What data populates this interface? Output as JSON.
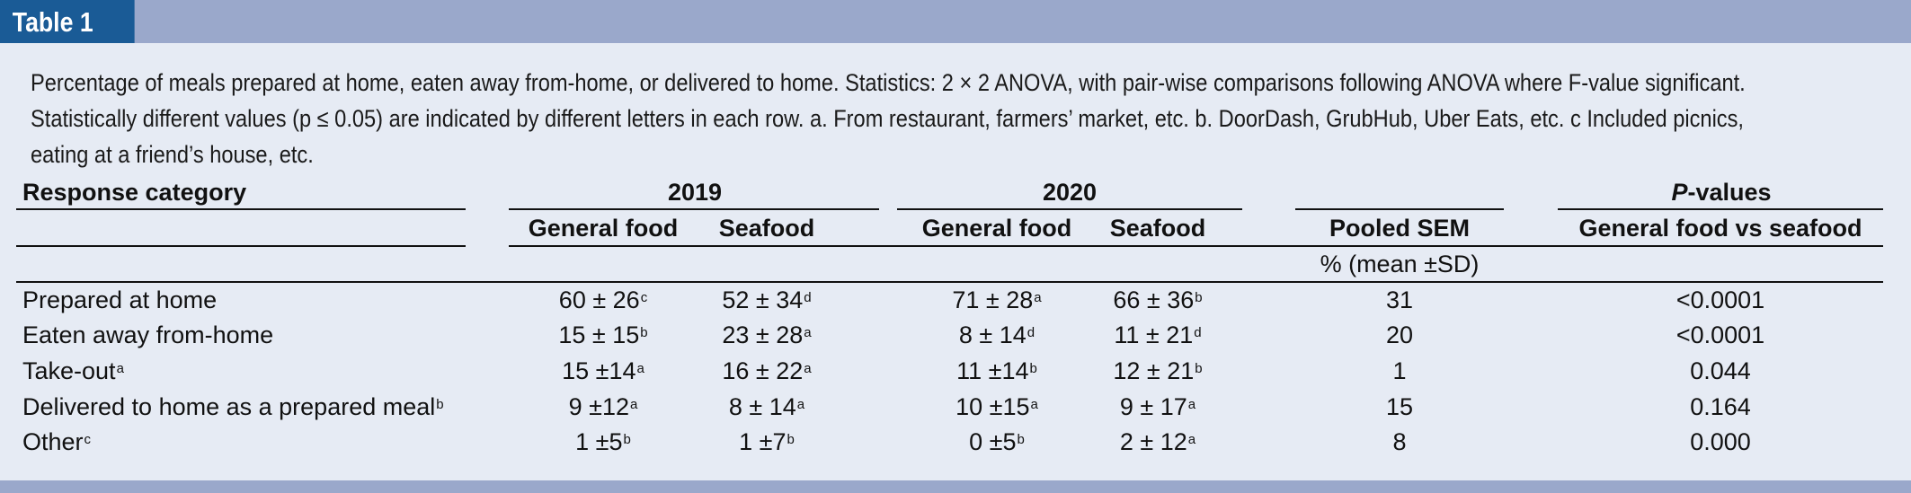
{
  "tab_label": "Table 1",
  "caption_lines": [
    "Percentage of meals prepared at home, eaten away from-home, or delivered to home. Statistics: 2 × 2 ANOVA, with pair-wise comparisons following ANOVA where F-value significant.",
    "Statistically different values (p ≤ 0.05) are indicated by different letters in each row. a. From restaurant, farmers’ market, etc. b. DoorDash, GrubHub, Uber Eats, etc. c Included picnics,",
    "eating at a friend’s house, etc."
  ],
  "header": {
    "response_category": "Response category",
    "year_2019": "2019",
    "year_2020": "2020",
    "p_values": "-values",
    "p_italic": "P",
    "general_food_2019": "General food",
    "seafood_2019": "Seafood",
    "general_food_2020": "General food",
    "seafood_2020": "Seafood",
    "pooled_sem": "Pooled SEM",
    "comparison": "General food vs seafood",
    "units": "% (mean ±SD)"
  },
  "rows": [
    {
      "category": "Prepared at home",
      "category_sup": "",
      "gf2019": "60 ± 26",
      "gf2019_sup": "c",
      "sf2019": "52 ± 34",
      "sf2019_sup": "d",
      "gf2020": "71 ± 28",
      "gf2020_sup": "a",
      "sf2020": "66 ± 36",
      "sf2020_sup": "b",
      "sem": "31",
      "p": "<0.0001"
    },
    {
      "category": "Eaten away from-home",
      "category_sup": "",
      "gf2019": "15 ± 15",
      "gf2019_sup": "b",
      "sf2019": "23 ± 28",
      "sf2019_sup": "a",
      "gf2020": "8 ± 14",
      "gf2020_sup": "d",
      "sf2020": "11 ± 21",
      "sf2020_sup": "d",
      "sem": "20",
      "p": "<0.0001"
    },
    {
      "category": "Take-out",
      "category_sup": "a",
      "gf2019": "15 ±14",
      "gf2019_sup": "a",
      "sf2019": "16 ± 22",
      "sf2019_sup": "a",
      "gf2020": "11 ±14",
      "gf2020_sup": "b",
      "sf2020": "12 ± 21",
      "sf2020_sup": "b",
      "sem": "1",
      "p": "0.044"
    },
    {
      "category": "Delivered to home as a prepared meal",
      "category_sup": "b",
      "gf2019": "9 ±12",
      "gf2019_sup": "a",
      "sf2019": "8 ± 14",
      "sf2019_sup": "a",
      "gf2020": "10 ±15",
      "gf2020_sup": "a",
      "sf2020": "9 ± 17",
      "sf2020_sup": "a",
      "sem": "15",
      "p": "0.164"
    },
    {
      "category": "Other",
      "category_sup": "c",
      "gf2019": "1 ±5",
      "gf2019_sup": "b",
      "sf2019": "1 ±7",
      "sf2019_sup": "b",
      "gf2020": "0 ±5",
      "gf2020_sup": "b",
      "sf2020": "2 ± 12",
      "sf2020_sup": "a",
      "sem": "8",
      "p": "0.000"
    }
  ],
  "colors": {
    "tab": "#1a5b96",
    "bar": "#9aa8cb",
    "panel": "#e6ebf4"
  }
}
